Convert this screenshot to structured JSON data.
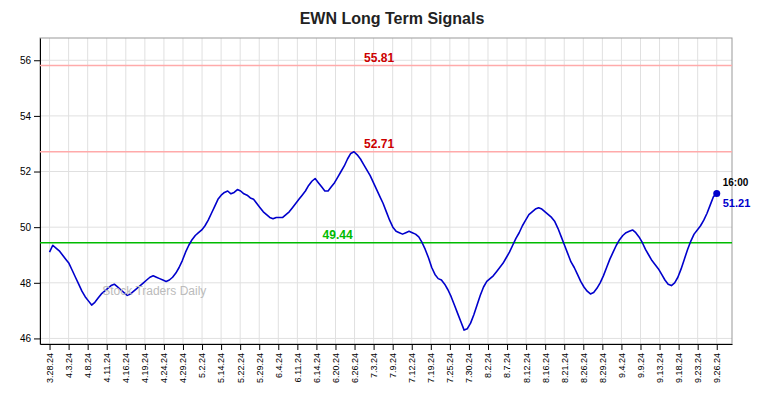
{
  "chart_data": {
    "type": "line",
    "title": "EWN Long Term Signals",
    "color": "#0000cc",
    "grid": true,
    "xlim": [
      -0.5,
      35.8
    ],
    "xticks": [
      {
        "value": 0,
        "label": "3.28.24"
      },
      {
        "value": 1,
        "label": "4.3.24"
      },
      {
        "value": 2,
        "label": "4.8.24"
      },
      {
        "value": 3,
        "label": "4.11.24"
      },
      {
        "value": 4,
        "label": "4.16.24"
      },
      {
        "value": 5,
        "label": "4.19.24"
      },
      {
        "value": 6,
        "label": "4.24.24"
      },
      {
        "value": 7,
        "label": "4.29.24"
      },
      {
        "value": 8,
        "label": "5.2.24"
      },
      {
        "value": 9,
        "label": "5.14.24"
      },
      {
        "value": 10,
        "label": "5.22.24"
      },
      {
        "value": 11,
        "label": "5.29.24"
      },
      {
        "value": 12,
        "label": "6.4.24"
      },
      {
        "value": 13,
        "label": "6.11.24"
      },
      {
        "value": 14,
        "label": "6.14.24"
      },
      {
        "value": 15,
        "label": "6.20.24"
      },
      {
        "value": 16,
        "label": "6.26.24"
      },
      {
        "value": 17,
        "label": "7.3.24"
      },
      {
        "value": 18,
        "label": "7.9.24"
      },
      {
        "value": 19,
        "label": "7.12.24"
      },
      {
        "value": 20,
        "label": "7.19.24"
      },
      {
        "value": 21,
        "label": "7.25.24"
      },
      {
        "value": 22,
        "label": "7.30.24"
      },
      {
        "value": 23,
        "label": "8.2.24"
      },
      {
        "value": 24,
        "label": "8.7.24"
      },
      {
        "value": 25,
        "label": "8.12.24"
      },
      {
        "value": 26,
        "label": "8.16.24"
      },
      {
        "value": 27,
        "label": "8.21.24"
      },
      {
        "value": 28,
        "label": "8.26.24"
      },
      {
        "value": 29,
        "label": "8.29.24"
      },
      {
        "value": 30,
        "label": "9.4.24"
      },
      {
        "value": 31,
        "label": "9.9.24"
      },
      {
        "value": 32,
        "label": "9.13.24"
      },
      {
        "value": 33,
        "label": "9.18.24"
      },
      {
        "value": 34,
        "label": "9.23.24"
      },
      {
        "value": 35,
        "label": "9.26.24"
      }
    ],
    "ylim": [
      45.8,
      56.8
    ],
    "yticks": [
      46,
      48,
      50,
      52,
      54,
      56
    ],
    "x": [
      0,
      0.1699,
      0.3398,
      0.5097,
      0.6796,
      0.8495,
      1.0194,
      1.1893,
      1.3592,
      1.5291,
      1.699,
      1.8689,
      2.0388,
      2.2087,
      2.3786,
      2.5485,
      2.7184,
      2.8883,
      3.0583,
      3.2282,
      3.3981,
      3.568,
      3.7379,
      3.9078,
      4.0777,
      4.2476,
      4.4175,
      4.5874,
      4.7573,
      4.9272,
      5.0971,
      5.267,
      5.4369,
      5.6068,
      5.7767,
      5.9466,
      6.1165,
      6.2864,
      6.4563,
      6.6262,
      6.7961,
      6.966,
      7.1359,
      7.3058,
      7.4757,
      7.6456,
      7.8155,
      7.9854,
      8.1553,
      8.3252,
      8.4951,
      8.665,
      8.835,
      9.0049,
      9.1748,
      9.3447,
      9.5146,
      9.6845,
      9.8544,
      10.0243,
      10.1942,
      10.3641,
      10.534,
      10.7039,
      10.8738,
      11.0437,
      11.2136,
      11.3835,
      11.5534,
      11.7233,
      11.8932,
      12.0631,
      12.233,
      12.4029,
      12.5728,
      12.7427,
      12.9126,
      13.0825,
      13.2524,
      13.4223,
      13.5922,
      13.7621,
      13.932,
      14.1019,
      14.2718,
      14.4417,
      14.6117,
      14.7816,
      14.9515,
      15.1214,
      15.2913,
      15.4612,
      15.6311,
      15.801,
      15.9709,
      16.1408,
      16.3107,
      16.4806,
      16.6505,
      16.8204,
      16.9903,
      17.1602,
      17.3301,
      17.5,
      17.6699,
      17.8398,
      18.0097,
      18.1796,
      18.3495,
      18.5194,
      18.6893,
      18.8592,
      19.0291,
      19.199,
      19.3689,
      19.5388,
      19.7087,
      19.8786,
      20.0485,
      20.2184,
      20.3883,
      20.5583,
      20.7282,
      20.8981,
      21.068,
      21.2379,
      21.4078,
      21.5777,
      21.7476,
      21.9175,
      22.0874,
      22.2573,
      22.4272,
      22.5971,
      22.767,
      22.9369,
      23.1068,
      23.2767,
      23.4466,
      23.6165,
      23.7864,
      23.9563,
      24.1262,
      24.2961,
      24.466,
      24.6359,
      24.8058,
      24.9757,
      25.1456,
      25.3155,
      25.4854,
      25.6553,
      25.8252,
      25.9951,
      26.165,
      26.335,
      26.5049,
      26.6748,
      26.8447,
      27.0146,
      27.1845,
      27.3544,
      27.5243,
      27.6942,
      27.8641,
      28.034,
      28.2039,
      28.3738,
      28.5437,
      28.7136,
      28.8835,
      29.0534,
      29.2233,
      29.3932,
      29.5631,
      29.733,
      29.9029,
      30.0728,
      30.2427,
      30.4126,
      30.5825,
      30.7524,
      30.9223,
      31.0922,
      31.2621,
      31.432,
      31.6019,
      31.7718,
      31.9417,
      32.1117,
      32.2816,
      32.4515,
      32.6214,
      32.7913,
      32.9612,
      33.1311,
      33.301,
      33.4709,
      33.6408,
      33.8107,
      33.9806,
      34.1505,
      34.3204,
      34.4903,
      34.6602,
      34.8301,
      35
    ],
    "values": [
      49.1,
      49.35,
      49.25,
      49.15,
      49.0,
      48.85,
      48.7,
      48.45,
      48.2,
      47.95,
      47.7,
      47.5,
      47.35,
      47.2,
      47.3,
      47.45,
      47.6,
      47.7,
      47.8,
      47.9,
      47.95,
      47.85,
      47.75,
      47.65,
      47.55,
      47.6,
      47.7,
      47.8,
      47.9,
      48.0,
      48.1,
      48.2,
      48.25,
      48.2,
      48.15,
      48.1,
      48.05,
      48.1,
      48.2,
      48.35,
      48.55,
      48.8,
      49.1,
      49.35,
      49.55,
      49.7,
      49.8,
      49.9,
      50.05,
      50.25,
      50.5,
      50.75,
      51.0,
      51.15,
      51.25,
      51.3,
      51.2,
      51.25,
      51.35,
      51.3,
      51.2,
      51.15,
      51.05,
      51.0,
      50.85,
      50.7,
      50.55,
      50.45,
      50.35,
      50.3,
      50.35,
      50.35,
      50.35,
      50.45,
      50.55,
      50.7,
      50.85,
      51.0,
      51.15,
      51.3,
      51.5,
      51.65,
      51.75,
      51.6,
      51.45,
      51.3,
      51.3,
      51.45,
      51.6,
      51.8,
      52.0,
      52.2,
      52.45,
      52.65,
      52.71,
      52.6,
      52.45,
      52.25,
      52.05,
      51.85,
      51.6,
      51.35,
      51.1,
      50.85,
      50.55,
      50.25,
      50.0,
      49.85,
      49.8,
      49.75,
      49.8,
      49.85,
      49.8,
      49.75,
      49.65,
      49.45,
      49.2,
      48.9,
      48.55,
      48.3,
      48.15,
      48.1,
      47.95,
      47.75,
      47.5,
      47.2,
      46.9,
      46.6,
      46.3,
      46.35,
      46.55,
      46.85,
      47.2,
      47.55,
      47.85,
      48.05,
      48.15,
      48.25,
      48.4,
      48.55,
      48.7,
      48.9,
      49.1,
      49.35,
      49.6,
      49.8,
      50.05,
      50.25,
      50.45,
      50.55,
      50.65,
      50.7,
      50.65,
      50.55,
      50.45,
      50.35,
      50.2,
      49.95,
      49.65,
      49.35,
      49.05,
      48.75,
      48.55,
      48.3,
      48.05,
      47.85,
      47.7,
      47.6,
      47.65,
      47.8,
      48.0,
      48.25,
      48.55,
      48.85,
      49.1,
      49.35,
      49.55,
      49.7,
      49.8,
      49.85,
      49.9,
      49.8,
      49.65,
      49.45,
      49.2,
      49.0,
      48.8,
      48.65,
      48.5,
      48.3,
      48.1,
      47.95,
      47.9,
      48.0,
      48.2,
      48.5,
      48.85,
      49.2,
      49.5,
      49.75,
      49.9,
      50.05,
      50.25,
      50.5,
      50.8,
      51.1,
      51.21
    ],
    "reference_lines": [
      {
        "value": 55.81,
        "label": "55.81",
        "color": "#ffaaaa"
      },
      {
        "value": 52.71,
        "label": "52.71",
        "color": "#ffaaaa"
      },
      {
        "value": 49.44,
        "label": "49.44",
        "color": "#00bb00"
      }
    ],
    "end_label": {
      "time": "16:00",
      "value": 51.21,
      "label": "51.21"
    },
    "watermark": "Stock Traders Daily"
  }
}
